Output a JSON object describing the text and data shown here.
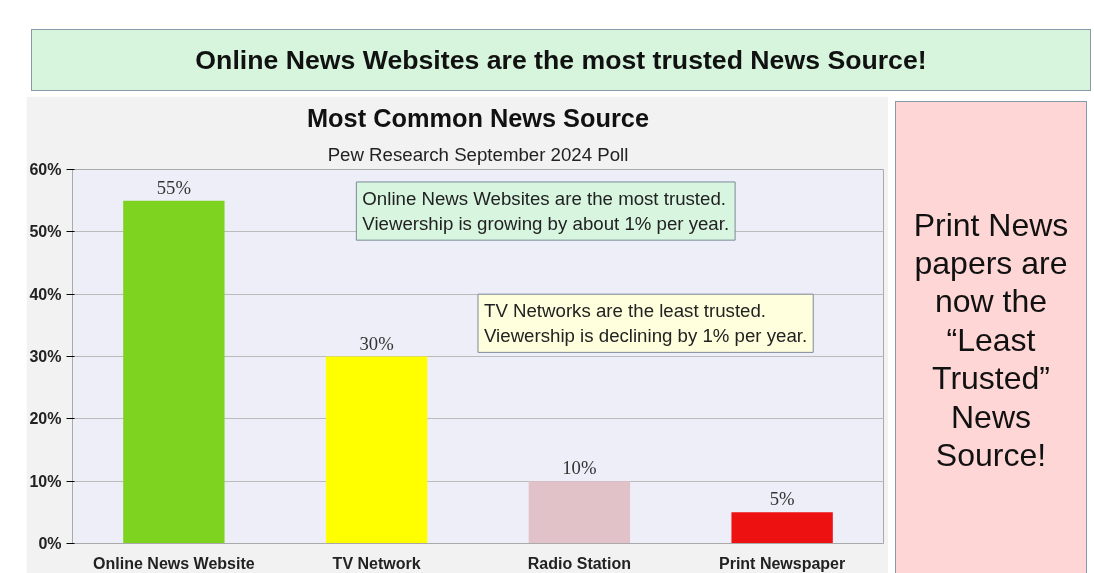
{
  "chart_data": {
    "type": "bar",
    "title": "Most Common News Source",
    "subtitle": "Pew Research September 2024 Poll",
    "categories": [
      "Online News Website",
      "TV Network",
      "Radio Station",
      "Print Newspaper"
    ],
    "values": [
      55,
      30,
      10,
      5
    ],
    "colors": [
      "#7ed321",
      "#ffff00",
      "#e0c2c8",
      "#ee1111"
    ],
    "value_labels": [
      "55%",
      "30%",
      "10%",
      "5%"
    ],
    "ylim": [
      0,
      60
    ],
    "yticks": [
      {
        "value": 0,
        "label": "0%"
      },
      {
        "value": 10,
        "label": "10%"
      },
      {
        "value": 20,
        "label": "20%"
      },
      {
        "value": 30,
        "label": "30%"
      },
      {
        "value": 40,
        "label": "40%"
      },
      {
        "value": 50,
        "label": "50%"
      },
      {
        "value": 60,
        "label": "60%"
      }
    ],
    "grid": "y",
    "annotations": [
      "Online News Websites are the most trusted News Source!",
      "Online News Websites are the most trusted.\nViewership is growing by about 1% per year.",
      "TV Networks are the least trusted.\nViewership is declining by 1% per year.",
      "Print News papers are now the “Least Trusted” News Source!"
    ]
  }
}
